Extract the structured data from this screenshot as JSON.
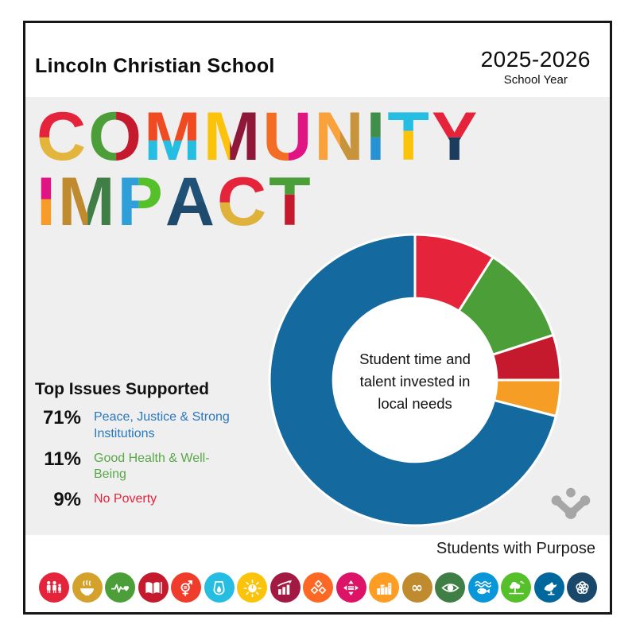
{
  "header": {
    "school_name": "Lincoln Christian School",
    "year": "2025-2026",
    "year_caption": "School Year"
  },
  "title": {
    "line1": "COMMUNITY",
    "line2": "IMPACT",
    "line1_colors": [
      {
        "c1": "#e5243b",
        "c2": "#e3b53c",
        "dir": "v",
        "split": 50
      },
      {
        "c1": "#4c9f38",
        "c2": "#c5192d",
        "dir": "h",
        "split": 50
      },
      {
        "c1": "#f04a23",
        "c2": "#26bde2",
        "dir": "v",
        "split": 55
      },
      {
        "c1": "#fcc30b",
        "c2": "#8f1838",
        "dir": "h",
        "split": 45
      },
      {
        "c1": "#f36d25",
        "c2": "#e11484",
        "dir": "h",
        "split": 50
      },
      {
        "c1": "#f9a13b",
        "c2": "#c7933b",
        "dir": "h",
        "split": 50
      },
      {
        "c1": "#3f8e49",
        "c2": "#2492d3",
        "dir": "v",
        "split": 50
      },
      {
        "c1": "#26bde2",
        "c2": "#fcc30b",
        "dir": "v",
        "split": 40
      },
      {
        "c1": "#e5243b",
        "c2": "#1c3c5e",
        "dir": "v",
        "split": 50
      }
    ],
    "line2_colors": [
      {
        "c1": "#e01483",
        "c2": "#f79c29",
        "dir": "v",
        "split": 45
      },
      {
        "c1": "#bf8b2e",
        "c2": "#3f7e44",
        "dir": "h",
        "split": 50
      },
      {
        "c1": "#2e9fd9",
        "c2": "#56c02b",
        "dir": "h",
        "split": 45
      },
      {
        "c1": "#205278",
        "c2": "#1d4a6d",
        "dir": "v",
        "split": 50
      },
      {
        "c1": "#e5243b",
        "c2": "#dfb23c",
        "dir": "v",
        "split": 50
      },
      {
        "c1": "#4c9f38",
        "c2": "#c5192d",
        "dir": "v",
        "split": 38
      }
    ]
  },
  "legend": {
    "heading": "Top Issues Supported",
    "items": [
      {
        "pct": "71%",
        "label": "Peace, Justice & Strong Institutions",
        "color": "#2878bd"
      },
      {
        "pct": "11%",
        "label": "Good Health & Well-Being",
        "color": "#58a847"
      },
      {
        "pct": "9%",
        "label": "No Poverty",
        "color": "#e5243b"
      }
    ]
  },
  "chart_data": {
    "type": "pie",
    "variant": "donut",
    "start_angle_deg": 0,
    "direction": "clockwise",
    "inner_radius_ratio": 0.57,
    "center_label_lines": [
      "Student time and",
      "talent invested in",
      "local needs"
    ],
    "slices": [
      {
        "label": "No Poverty",
        "value_pct": 9,
        "color": "#e5243b"
      },
      {
        "label": "Good Health & Well-Being",
        "value_pct": 11,
        "color": "#4c9f38"
      },
      {
        "label": "",
        "value_pct": 5,
        "color": "#c5192d"
      },
      {
        "label": "",
        "value_pct": 4,
        "color": "#f59d25"
      },
      {
        "label": "Peace, Justice & Strong Institutions",
        "value_pct": 71,
        "color": "#14699f"
      }
    ]
  },
  "footer": {
    "tagline": "Students with Purpose"
  },
  "logo_color": "#a6a6a6",
  "colors": {
    "panel_bg": "#efefef",
    "border": "#161616"
  },
  "sdg_icons": [
    {
      "name": "sdg-no-poverty-icon",
      "glyph": "no-poverty",
      "color": "#e5243b"
    },
    {
      "name": "sdg-zero-hunger-icon",
      "glyph": "zero-hunger",
      "color": "#d3a12c"
    },
    {
      "name": "sdg-good-health-and-well-being-icon",
      "glyph": "good-health",
      "color": "#4c9f38"
    },
    {
      "name": "sdg-quality-education-icon",
      "glyph": "quality-education",
      "color": "#c5192d"
    },
    {
      "name": "sdg-gender-equality-icon",
      "glyph": "gender-equality",
      "color": "#f03c2b"
    },
    {
      "name": "sdg-clean-water-and-sanitation-icon",
      "glyph": "clean-water",
      "color": "#26bde2"
    },
    {
      "name": "sdg-affordable-and-clean-energy-icon",
      "glyph": "energy",
      "color": "#fcc30b"
    },
    {
      "name": "sdg-decent-work-and-economic-growth-icon",
      "glyph": "decent-work",
      "color": "#a21942"
    },
    {
      "name": "sdg-industry-innovation-icon",
      "glyph": "industry",
      "color": "#fd6925"
    },
    {
      "name": "sdg-reduced-inequalities-icon",
      "glyph": "reduced-inequalities",
      "color": "#dd1367"
    },
    {
      "name": "sdg-sustainable-cities-icon",
      "glyph": "cities",
      "color": "#fd9d24"
    },
    {
      "name": "sdg-responsible-consumption-icon",
      "glyph": "consumption",
      "color": "#bf8b2e"
    },
    {
      "name": "sdg-climate-action-icon",
      "glyph": "climate",
      "color": "#3f7e44"
    },
    {
      "name": "sdg-life-below-water-icon",
      "glyph": "water-life",
      "color": "#0a97d9"
    },
    {
      "name": "sdg-life-on-land-icon",
      "glyph": "land-life",
      "color": "#56c02b"
    },
    {
      "name": "sdg-peace-justice-icon",
      "glyph": "peace",
      "color": "#00689d"
    },
    {
      "name": "sdg-partnerships-icon",
      "glyph": "partnerships",
      "color": "#19486a"
    }
  ]
}
